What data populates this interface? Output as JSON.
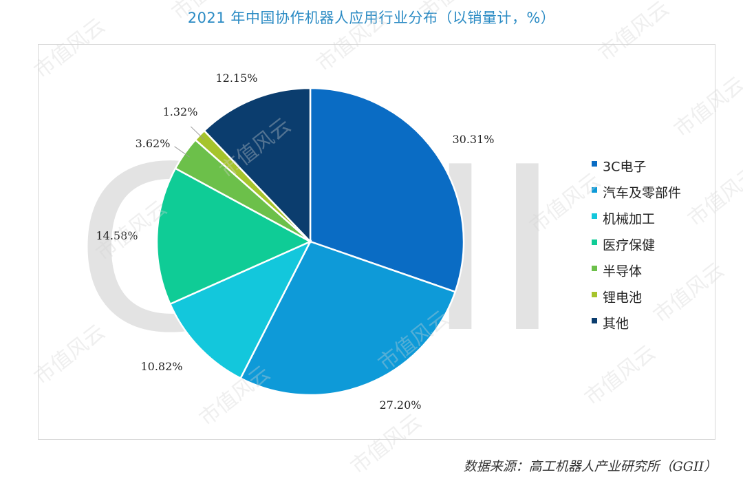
{
  "title": "2021 年中国协作机器人应用行业分布（以销量计，%）",
  "source": "数据来源：高工机器人产业研究所（GGII）",
  "watermark": {
    "big": "GGII",
    "small": "市值风云"
  },
  "chart_data": {
    "type": "pie",
    "title": "2021 年中国协作机器人应用行业分布（以销量计，%）",
    "unit": "%",
    "legend_position": "right",
    "start_angle_deg": 0,
    "direction": "clockwise",
    "categories": [
      "3C电子",
      "汽车及零部件",
      "机械加工",
      "医疗保健",
      "半导体",
      "锂电池",
      "其他"
    ],
    "values": [
      30.31,
      27.2,
      10.82,
      14.58,
      3.62,
      1.32,
      12.15
    ],
    "labels": [
      "30.31%",
      "27.20%",
      "10.82%",
      "14.58%",
      "3.62%",
      "1.32%",
      "12.15%"
    ],
    "colors": [
      "#0a6cc4",
      "#0e9ad8",
      "#13c7dc",
      "#0fcc96",
      "#6cc04a",
      "#a6c42c",
      "#0b3d6e"
    ]
  }
}
